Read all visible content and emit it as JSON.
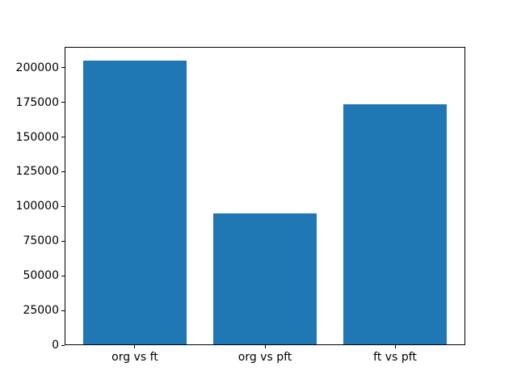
{
  "chart_data": {
    "type": "bar",
    "title": "",
    "xlabel": "",
    "ylabel": "",
    "categories": [
      "org vs ft",
      "org vs pft",
      "ft vs pft"
    ],
    "values": [
      205000,
      95000,
      173500
    ],
    "bar_color": "#1f77b4",
    "bar_width": 0.8,
    "ylim": [
      0,
      215250
    ],
    "yticks": [
      0,
      25000,
      50000,
      75000,
      100000,
      125000,
      150000,
      175000,
      200000
    ],
    "ytick_labels": [
      "0",
      "25000",
      "50000",
      "75000",
      "100000",
      "125000",
      "150000",
      "175000",
      "200000"
    ],
    "grid": false,
    "legend": null,
    "background_color": "#ffffff",
    "spine_color": "#000000",
    "text_color": "#000000"
  }
}
